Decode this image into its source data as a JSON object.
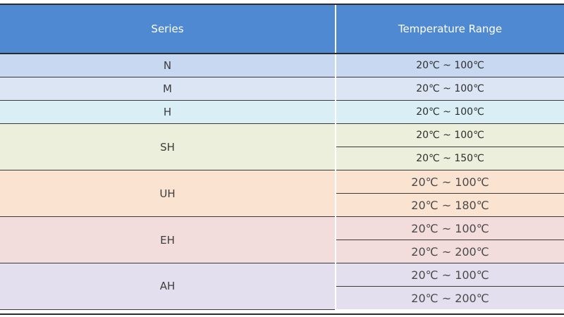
{
  "header": {
    "series_label": "Series",
    "temperature_label": "Temperature Range"
  },
  "groups": [
    {
      "series": "N",
      "color": "#c7d8f0",
      "ranges": [
        "20℃ ~ 100℃"
      ]
    },
    {
      "series": "M",
      "color": "#dbe5f3",
      "ranges": [
        "20℃ ~ 100℃"
      ]
    },
    {
      "series": "H",
      "color": "#d9eef5",
      "ranges": [
        "20℃ ~ 100℃"
      ]
    },
    {
      "series": "SH",
      "color": "#ebefdb",
      "ranges": [
        "20℃ ~ 100℃",
        "20℃ ~ 150℃"
      ]
    },
    {
      "series": "UH",
      "color": "#fbe3d2",
      "ranges": [
        "20℃ ~ 100℃",
        "20℃ ~ 180℃"
      ]
    },
    {
      "series": "EH",
      "color": "#f3dcdc",
      "ranges": [
        "20℃ ~ 100℃",
        "20℃ ~ 200℃"
      ]
    },
    {
      "series": "AH",
      "color": "#e3dfee",
      "ranges": [
        "20℃ ~ 100℃",
        "20℃ ~ 200℃"
      ]
    }
  ]
}
